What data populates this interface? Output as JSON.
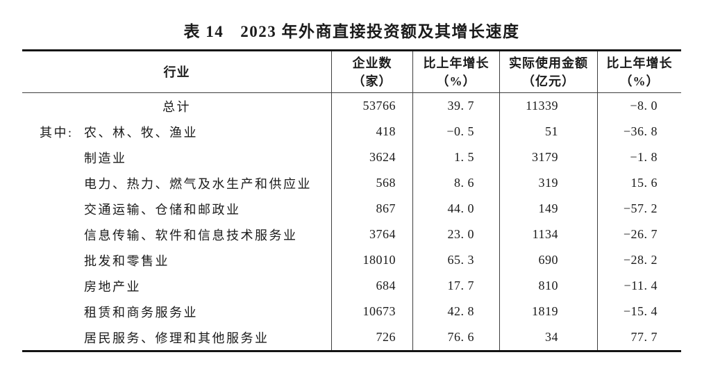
{
  "title": {
    "table_label": "表 14",
    "text": "2023 年外商直接投资额及其增长速度"
  },
  "colors": {
    "background": "#ffffff",
    "text": "#1a1a1a",
    "rule": "#141414",
    "grid": "#3d3d3d"
  },
  "table": {
    "header": [
      {
        "line1": "行业",
        "line2": ""
      },
      {
        "line1": "企业数",
        "line2": "（家）"
      },
      {
        "line1": "比上年增长",
        "line2": "（%）"
      },
      {
        "line1": "实际使用金额",
        "line2": "（亿元）"
      },
      {
        "line1": "比上年增长",
        "line2": "（%）"
      }
    ],
    "rows": [
      {
        "prefix": "",
        "industry": "总计",
        "center": true,
        "values": [
          "53766",
          "39. 7",
          "11339",
          "−8. 0"
        ]
      },
      {
        "prefix": "其中:",
        "industry": "农、林、牧、渔业",
        "center": false,
        "values": [
          "418",
          "−0. 5",
          "51",
          "−36. 8"
        ]
      },
      {
        "prefix": "",
        "industry": "制造业",
        "center": false,
        "values": [
          "3624",
          "1. 5",
          "3179",
          "−1. 8"
        ]
      },
      {
        "prefix": "",
        "industry": "电力、热力、燃气及水生产和供应业",
        "center": false,
        "values": [
          "568",
          "8. 6",
          "319",
          "15. 6"
        ]
      },
      {
        "prefix": "",
        "industry": "交通运输、仓储和邮政业",
        "center": false,
        "values": [
          "867",
          "44. 0",
          "149",
          "−57. 2"
        ]
      },
      {
        "prefix": "",
        "industry": "信息传输、软件和信息技术服务业",
        "center": false,
        "values": [
          "3764",
          "23. 0",
          "1134",
          "−26. 7"
        ]
      },
      {
        "prefix": "",
        "industry": "批发和零售业",
        "center": false,
        "values": [
          "18010",
          "65. 3",
          "690",
          "−28. 2"
        ]
      },
      {
        "prefix": "",
        "industry": "房地产业",
        "center": false,
        "values": [
          "684",
          "17. 7",
          "810",
          "−11. 4"
        ]
      },
      {
        "prefix": "",
        "industry": "租赁和商务服务业",
        "center": false,
        "values": [
          "10673",
          "42. 8",
          "1819",
          "−15. 4"
        ]
      },
      {
        "prefix": "",
        "industry": "居民服务、修理和其他服务业",
        "center": false,
        "values": [
          "726",
          "76. 6",
          "34",
          "77. 7"
        ]
      }
    ]
  }
}
